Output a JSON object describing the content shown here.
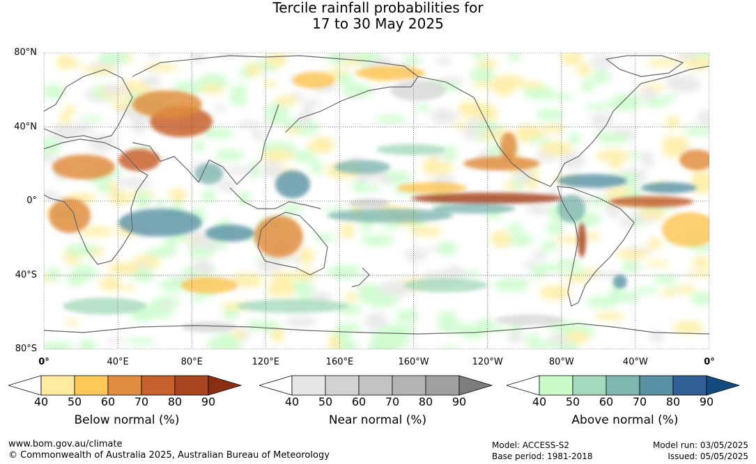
{
  "title": {
    "line1": "Tercile rainfall probabilities for",
    "line2": "17 to 30 May 2025"
  },
  "map": {
    "lat_labels": [
      "80°N",
      "40°N",
      "0°",
      "40°S",
      "80°S"
    ],
    "lon_labels": [
      "0°",
      "40°E",
      "80°E",
      "120°E",
      "160°E",
      "160°W",
      "120°W",
      "80°W",
      "40°W",
      "0°"
    ],
    "colors": {
      "land_outline": "#666666",
      "grid": "#555555"
    }
  },
  "scales": [
    {
      "name": "below",
      "label": "Below normal (%)",
      "ticks": [
        "40",
        "50",
        "60",
        "70",
        "80",
        "90"
      ],
      "colors": [
        "#ffffff",
        "#feeda0",
        "#fdc75a",
        "#e08d40",
        "#c8602d",
        "#a8451f",
        "#8a2e12"
      ]
    },
    {
      "name": "near",
      "label": "Near normal (%)",
      "ticks": [
        "40",
        "50",
        "60",
        "70",
        "80",
        "90"
      ],
      "colors": [
        "#ffffff",
        "#e6e6e6",
        "#d2d2d2",
        "#c3c3c3",
        "#b4b4b4",
        "#a0a0a0",
        "#7d7d7d"
      ]
    },
    {
      "name": "above",
      "label": "Above normal (%)",
      "ticks": [
        "40",
        "50",
        "60",
        "70",
        "80",
        "90"
      ],
      "colors": [
        "#ffffff",
        "#c9fcc9",
        "#a5d9bb",
        "#7fb6b0",
        "#5991a4",
        "#315f96",
        "#124a80"
      ]
    }
  ],
  "footer": {
    "url": "www.bom.gov.au/climate",
    "copyright": "© Commonwealth of Australia 2025, Australian Bureau of Meteorology",
    "model": "Model: ACCESS-S2",
    "base_period": "Base period: 1981-2018",
    "model_run": "Model run: 03/05/2025",
    "issued": "Issued: 05/05/2025"
  }
}
